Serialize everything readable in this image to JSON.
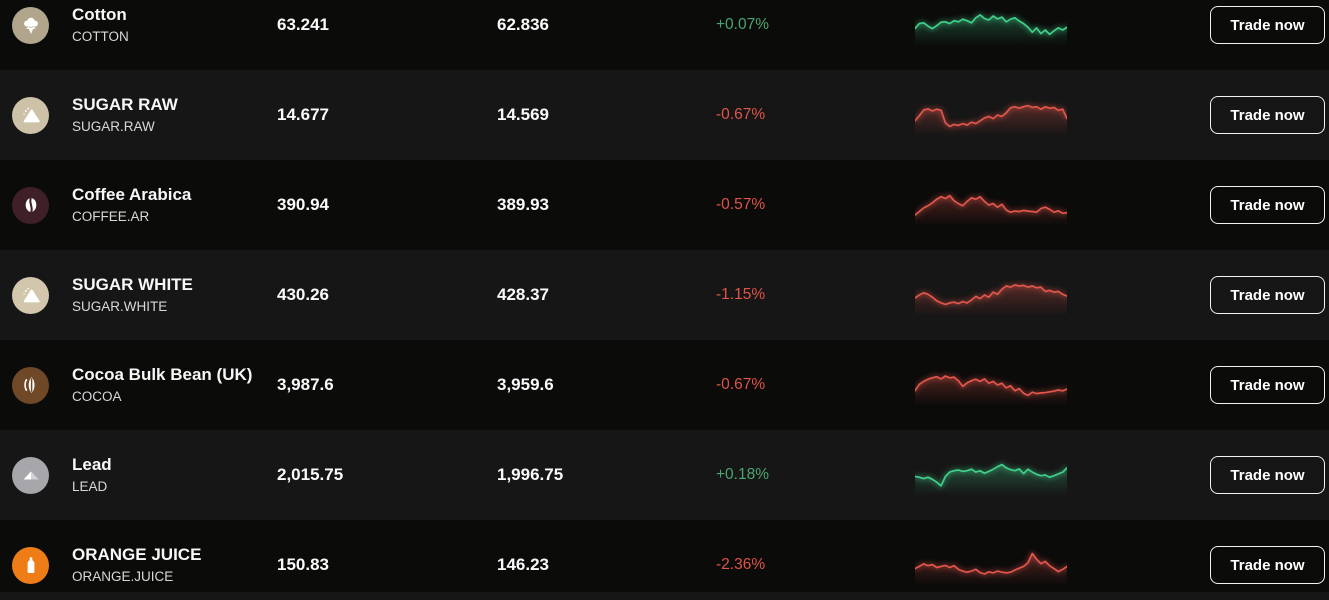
{
  "labels": {
    "trade_now": "Trade now"
  },
  "colors": {
    "up_text": "#4aa670",
    "down_text": "#e05449",
    "up_line": "#41d08c",
    "down_line": "#e2564b",
    "row_dark": "#0b0b0a",
    "row_light": "#161616"
  },
  "rows": [
    {
      "name": "Cotton",
      "symbol": "COTTON",
      "sell_price": "63.241",
      "buy_price": "62.836",
      "change": "+0.07%",
      "trend": "up",
      "icon": "cotton",
      "icon_name": "cotton-icon",
      "icon_bg": "#b1a68c",
      "sparkline": [
        60,
        46,
        44,
        53,
        60,
        52,
        42,
        41,
        46,
        38,
        41,
        34,
        38,
        44,
        30,
        22,
        32,
        36,
        25,
        33,
        28,
        41,
        34,
        30,
        39,
        46,
        56,
        70,
        58,
        74,
        64,
        76,
        66,
        58,
        64,
        56
      ]
    },
    {
      "name": "SUGAR RAW",
      "symbol": "SUGAR.RAW",
      "sell_price": "14.677",
      "buy_price": "14.569",
      "change": "-0.67%",
      "trend": "down",
      "icon": "sugar",
      "icon_name": "sugar-icon",
      "icon_bg": "#cdc1a8",
      "sparkline": [
        66,
        52,
        36,
        33,
        39,
        34,
        37,
        72,
        82,
        76,
        79,
        74,
        78,
        70,
        74,
        66,
        58,
        54,
        60,
        50,
        54,
        44,
        30,
        27,
        31,
        27,
        24,
        29,
        27,
        34,
        27,
        31,
        29,
        37,
        34,
        60
      ]
    },
    {
      "name": "Coffee Arabica",
      "symbol": "COFFEE.AR",
      "sell_price": "390.94",
      "buy_price": "389.93",
      "change": "-0.57%",
      "trend": "down",
      "icon": "coffee",
      "icon_name": "coffee-bean-icon",
      "icon_bg": "#3f1f28",
      "sparkline": [
        78,
        68,
        58,
        52,
        44,
        34,
        27,
        32,
        24,
        38,
        46,
        52,
        40,
        30,
        34,
        27,
        40,
        50,
        46,
        56,
        48,
        64,
        70,
        67,
        68,
        65,
        67,
        68,
        70,
        60,
        56,
        62,
        70,
        66,
        73,
        71
      ]
    },
    {
      "name": "SUGAR WHITE",
      "symbol": "SUGAR.WHITE",
      "sell_price": "430.26",
      "buy_price": "428.37",
      "change": "-1.15%",
      "trend": "down",
      "icon": "sugar",
      "icon_name": "sugar-icon",
      "icon_bg": "#d2c6ad",
      "sparkline": [
        58,
        50,
        44,
        48,
        56,
        66,
        72,
        76,
        72,
        70,
        74,
        68,
        72,
        64,
        54,
        60,
        50,
        56,
        42,
        48,
        34,
        25,
        28,
        22,
        25,
        23,
        28,
        25,
        30,
        28,
        40,
        37,
        42,
        40,
        48,
        53
      ]
    },
    {
      "name": "Cocoa Bulk Bean (UK)",
      "symbol": "COCOA",
      "sell_price": "3,987.6",
      "buy_price": "3,959.6",
      "change": "-0.67%",
      "trend": "down",
      "icon": "cocoa",
      "icon_name": "cocoa-pod-icon",
      "icon_bg": "#6f4828",
      "sparkline": [
        66,
        48,
        40,
        34,
        30,
        27,
        33,
        25,
        30,
        28,
        38,
        54,
        44,
        38,
        34,
        40,
        33,
        45,
        40,
        50,
        45,
        58,
        52,
        66,
        60,
        73,
        79,
        70,
        74,
        72,
        71,
        69,
        67,
        64,
        66,
        61
      ]
    },
    {
      "name": "Lead",
      "symbol": "LEAD",
      "sell_price": "2,015.75",
      "buy_price": "1,996.75",
      "change": "+0.18%",
      "trend": "up",
      "icon": "lead",
      "icon_name": "metal-ingot-icon",
      "icon_bg": "#a6a6ab",
      "sparkline": [
        54,
        56,
        60,
        56,
        62,
        70,
        80,
        54,
        42,
        38,
        36,
        40,
        38,
        34,
        42,
        38,
        45,
        40,
        34,
        27,
        21,
        30,
        35,
        38,
        33,
        46,
        34,
        42,
        48,
        52,
        50,
        56,
        52,
        47,
        42,
        30
      ]
    },
    {
      "name": "ORANGE JUICE",
      "symbol": "ORANGE.JUICE",
      "sell_price": "150.83",
      "buy_price": "146.23",
      "change": "-2.36%",
      "trend": "down",
      "icon": "juice",
      "icon_name": "juice-bottle-icon",
      "icon_bg": "#ee7d17",
      "sparkline": [
        60,
        54,
        47,
        52,
        49,
        57,
        54,
        51,
        57,
        52,
        62,
        67,
        70,
        67,
        62,
        71,
        75,
        69,
        72,
        67,
        70,
        72,
        70,
        64,
        59,
        54,
        44,
        18,
        34,
        46,
        40,
        52,
        60,
        68,
        62,
        54
      ]
    }
  ]
}
